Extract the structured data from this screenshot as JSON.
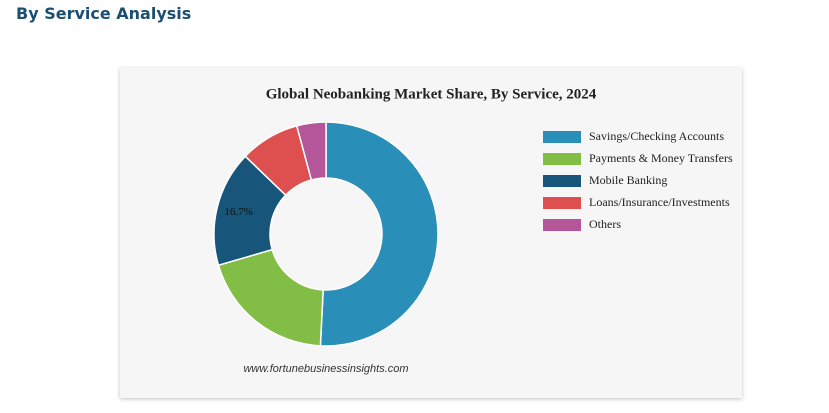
{
  "header": {
    "title": "By Service Analysis"
  },
  "chart_data": {
    "type": "donut",
    "title": "Global Neobanking Market Share, By Service, 2024",
    "categories": [
      "Savings/Checking Accounts",
      "Payments & Money Transfers",
      "Mobile Banking",
      "Loans/Insurance/Investments",
      "Others"
    ],
    "values": [
      50.8,
      19.7,
      16.7,
      8.6,
      4.2
    ],
    "value_labels": [
      null,
      null,
      "16.7%",
      null,
      null
    ],
    "colors": [
      "#2a8fb8",
      "#82bd45",
      "#17557a",
      "#de5050",
      "#b5569a"
    ],
    "source": "www.fortunebusinessinsights.com"
  }
}
